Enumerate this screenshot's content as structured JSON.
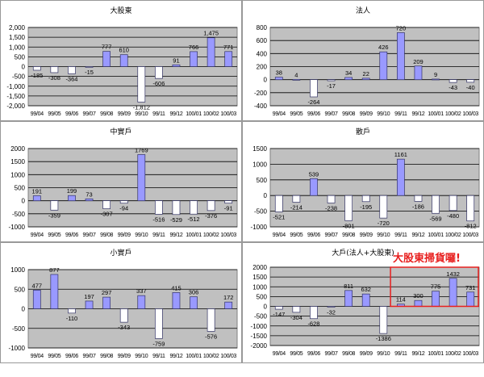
{
  "chart_data": [
    {
      "type": "bar",
      "title": "大股東",
      "comma": true,
      "categories": [
        "99/04",
        "99/05",
        "99/06",
        "99/07",
        "99/08",
        "99/09",
        "99/10",
        "99/11",
        "99/12",
        "100/01",
        "100/02",
        "100/03"
      ],
      "values": [
        -185,
        -308,
        -364,
        -15,
        777,
        610,
        -1812,
        -606,
        91,
        766,
        1475,
        771
      ],
      "ylim": [
        -2000,
        2000
      ],
      "yticks": [
        2000,
        1500,
        1000,
        500,
        0,
        -500,
        -1000,
        -1500,
        -2000
      ],
      "grid": true
    },
    {
      "type": "bar",
      "title": "法人",
      "comma": false,
      "categories": [
        "99/04",
        "99/05",
        "99/06",
        "99/07",
        "99/08",
        "99/09",
        "99/10",
        "99/11",
        "99/12",
        "100/01",
        "100/02",
        "100/03"
      ],
      "values": [
        38,
        4,
        -264,
        -17,
        34,
        22,
        426,
        720,
        209,
        9,
        -43,
        -40
      ],
      "ylim": [
        -400,
        800
      ],
      "yticks": [
        800,
        600,
        400,
        200,
        0,
        -200,
        -400
      ],
      "grid": true
    },
    {
      "type": "bar",
      "title": "中實戶",
      "comma": false,
      "categories": [
        "99/04",
        "99/05",
        "99/06",
        "99/07",
        "99/08",
        "99/09",
        "99/10",
        "99/11",
        "99/12",
        "100/01",
        "100/02",
        "100/03"
      ],
      "values": [
        191,
        -359,
        199,
        73,
        -307,
        -94,
        1769,
        -516,
        -529,
        -512,
        -376,
        -91
      ],
      "ylim": [
        -1000,
        2000
      ],
      "yticks": [
        2000,
        1500,
        1000,
        500,
        0,
        -500,
        -1000
      ],
      "grid": true
    },
    {
      "type": "bar",
      "title": "散戶",
      "comma": false,
      "categories": [
        "99/04",
        "99/05",
        "99/06",
        "99/07",
        "99/08",
        "99/09",
        "99/10",
        "99/11",
        "99/12",
        "100/01",
        "100/02",
        "100/03"
      ],
      "values": [
        -521,
        -214,
        539,
        -238,
        -801,
        -195,
        -720,
        1161,
        -186,
        -569,
        -480,
        -812
      ],
      "ylim": [
        -1000,
        1500
      ],
      "yticks": [
        1500,
        1000,
        500,
        0,
        -500,
        -1000
      ],
      "grid": true
    },
    {
      "type": "bar",
      "title": "小實戶",
      "comma": false,
      "categories": [
        "99/04",
        "99/05",
        "99/06",
        "99/07",
        "99/08",
        "99/09",
        "99/10",
        "99/11",
        "99/12",
        "100/01",
        "100/02",
        "100/03"
      ],
      "values": [
        477,
        877,
        -110,
        197,
        297,
        -343,
        337,
        -759,
        415,
        306,
        -576,
        172
      ],
      "ylim": [
        -1000,
        1000
      ],
      "yticks": [
        1000,
        500,
        0,
        -500,
        -1000
      ],
      "grid": true
    },
    {
      "type": "bar",
      "title": "大戶(法人+大股東)",
      "comma": false,
      "categories": [
        "99/04",
        "99/05",
        "99/06",
        "99/07",
        "99/08",
        "99/09",
        "99/10",
        "99/11",
        "99/12",
        "100/01",
        "100/02",
        "100/03"
      ],
      "values": [
        -147,
        -304,
        -628,
        -32,
        811,
        632,
        -1386,
        114,
        300,
        775,
        1432,
        731
      ],
      "ylim": [
        -2000,
        2000
      ],
      "yticks": [
        2000,
        1500,
        1000,
        500,
        0,
        -500,
        -1000,
        -1500,
        -2000
      ],
      "grid": true,
      "annotation": {
        "text": "大股東掃貨囉!",
        "highlight_categories": [
          "99/11",
          "99/12",
          "100/01",
          "100/02",
          "100/03"
        ],
        "color": "#e8201f"
      }
    }
  ],
  "colors": {
    "positive_bar": "#9999ff",
    "negative_bar": "#ffffff",
    "plot_bg": "#c0c0c0",
    "bar_border": "#333366"
  }
}
